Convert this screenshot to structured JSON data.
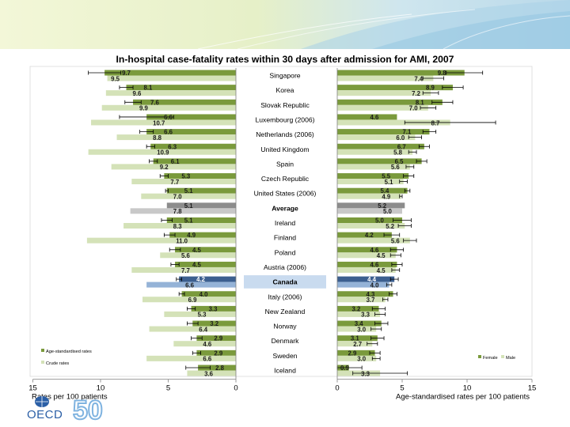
{
  "colors": {
    "age_std": "#7a9a3c",
    "crude": "#d4e2b8",
    "average": "#8c8c8c",
    "average_crude": "#c8c8c8",
    "canada_bar": "#3c5f8f",
    "canada_crude": "#95b3d7",
    "canada_band": "#c9dbef",
    "female": "#7a9a3c",
    "male": "#d4e2b8",
    "header_teal": "#cfe3ee",
    "header_green": "#eef3c4"
  },
  "logo": {
    "org": "OECD",
    "anniversary": "50"
  },
  "chart_data": {
    "type": "bar",
    "title": "In-hospital case-fatality rates within 30 days after admission for AMI, 2007",
    "categories": [
      "Singapore",
      "Korea",
      "Slovak Republic",
      "Luxembourg (2006)",
      "Netherlands (2006)",
      "United Kingdom",
      "Spain",
      "Czech Republic",
      "United States (2006)",
      "Average",
      "Ireland",
      "Finland",
      "Poland",
      "Austria (2006)",
      "Canada",
      "Italy (2006)",
      "New Zealand",
      "Norway",
      "Denmark",
      "Sweden",
      "Iceland"
    ],
    "left_panel": {
      "xlabel": "Rates per 100 patients",
      "xlim": [
        15,
        0
      ],
      "ticks": [
        "15",
        "10",
        "5",
        "0"
      ],
      "legend": [
        "Age-standardised rates",
        "Crude rates"
      ],
      "series": [
        {
          "name": "Age-standardised rates",
          "values": [
            9.7,
            8.1,
            7.6,
            6.6,
            6.6,
            6.3,
            6.1,
            5.3,
            5.1,
            5.1,
            5.1,
            4.9,
            4.5,
            4.5,
            4.2,
            4.0,
            3.3,
            3.2,
            2.9,
            2.9,
            2.8
          ],
          "labels": [
            "9.7",
            "8.1",
            "7.6",
            "6.6",
            "6.6",
            "6.3",
            "6.1",
            "5.3",
            "5.1",
            "5.1",
            "5.1",
            "4.9",
            "4.5",
            "4.5",
            "4.2",
            "4.0",
            "3.3",
            "3.2",
            "2.9",
            "2.9",
            "2.8"
          ]
        },
        {
          "name": "Crude rates",
          "values": [
            9.5,
            9.6,
            9.9,
            10.7,
            8.8,
            10.9,
            9.2,
            7.7,
            7.0,
            7.8,
            8.3,
            11.0,
            5.6,
            7.7,
            6.6,
            6.9,
            5.3,
            6.4,
            4.6,
            6.6,
            3.6
          ],
          "labels": [
            "9.5",
            "9.6",
            "9.9",
            "10.7",
            "8.8",
            "10.9",
            "9.2",
            "7.7",
            "7.0",
            "7.8",
            "8.3",
            "11.0",
            "5.6",
            "7.7",
            "6.6",
            "6.9",
            "5.3",
            "6.4",
            "4.6",
            "6.6",
            "3.6"
          ]
        }
      ]
    },
    "right_panel": {
      "xlabel": "Age-standardised rates per 100 patients",
      "xlim": [
        0,
        15
      ],
      "ticks": [
        "0",
        "5",
        "10",
        "15"
      ],
      "legend": [
        "Female",
        "Male"
      ],
      "series": [
        {
          "name": "Female",
          "values": [
            9.8,
            8.9,
            8.1,
            4.6,
            7.1,
            6.7,
            6.5,
            5.5,
            5.4,
            5.2,
            5.0,
            4.2,
            4.6,
            4.6,
            4.4,
            4.3,
            3.2,
            3.4,
            3.1,
            2.9,
            0.9
          ],
          "labels": [
            "9.8",
            "8.9",
            "8.1",
            "4.6",
            "7.1",
            "6.7",
            "6.5",
            "5.5",
            "5.4",
            "5.2",
            "5.0",
            "4.2",
            "4.6",
            "4.6",
            "4.4",
            "4.3",
            "3.2",
            "3.4",
            "3.1",
            "2.9",
            "0.9"
          ]
        },
        {
          "name": "Male",
          "values": [
            7.4,
            7.2,
            7.0,
            8.7,
            6.0,
            5.8,
            5.6,
            5.1,
            4.9,
            5.0,
            5.2,
            5.6,
            4.5,
            4.5,
            4.0,
            3.7,
            3.3,
            3.0,
            2.7,
            3.0,
            3.3
          ],
          "labels": [
            "7.4",
            "7.2",
            "7.0",
            "8.7",
            "6.0",
            "5.8",
            "5.6",
            "5.1",
            "4.9",
            "5.0",
            "5.2",
            "5.6",
            "4.5",
            "4.5",
            "4.0",
            "3.7",
            "3.3",
            "3.0",
            "2.7",
            "3.0",
            "3.3"
          ]
        }
      ]
    },
    "grid": false,
    "error_bars": true
  }
}
